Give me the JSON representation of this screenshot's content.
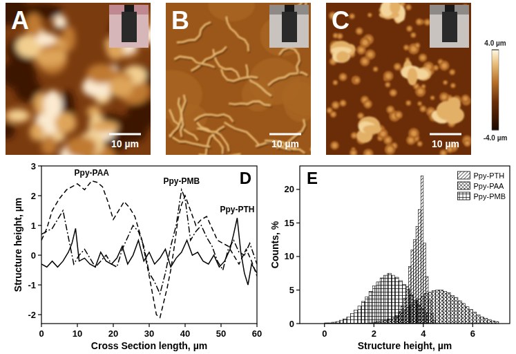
{
  "chart_data": [
    {
      "type": "image",
      "label": "A",
      "scale_bar": "10 µm"
    },
    {
      "type": "image",
      "label": "B",
      "scale_bar": "10 µm"
    },
    {
      "type": "image",
      "label": "C",
      "scale_bar": "10 µm"
    },
    {
      "type": "colorbar",
      "clim": [
        -4,
        4
      ],
      "ticks": [
        {
          "value": 4,
          "label": "4.0 µm"
        },
        {
          "value": -4,
          "label": "-4.0 µm"
        }
      ]
    },
    {
      "type": "line",
      "label": "D",
      "x_label": "Cross Section length, µm",
      "y_label": "Structure height, µm",
      "xlim": [
        0,
        60
      ],
      "ylim": [
        -2.3,
        3
      ],
      "xticks": [
        0,
        10,
        20,
        30,
        40,
        50,
        60
      ],
      "yticks": [
        -2,
        -1,
        0,
        1,
        2,
        3
      ],
      "grid": false,
      "series": [
        {
          "name": "Ppy-PAA",
          "color": "#000000",
          "line_style": "dashed",
          "x": [
            0,
            1.5,
            3,
            5,
            7,
            8.5,
            10,
            12,
            14,
            15.5,
            17,
            18.5,
            20,
            21.5,
            23,
            24.5,
            26,
            28,
            30,
            32,
            33,
            34,
            35,
            36,
            37,
            38,
            39,
            40,
            41.5,
            43,
            44.5,
            46,
            47.5,
            49,
            50.5,
            52,
            53.5,
            55,
            57,
            58.5,
            60
          ],
          "values": [
            0.5,
            0.9,
            1.5,
            1.9,
            2.2,
            2.3,
            2.4,
            2.2,
            2.5,
            2.45,
            2.3,
            1.8,
            1.2,
            1.5,
            1.8,
            1.6,
            1.3,
            0.5,
            -0.7,
            -2.0,
            -2.1,
            -1.6,
            -1.1,
            -0.5,
            0.3,
            1.2,
            1.7,
            2.0,
            1.5,
            1.0,
            1.2,
            1.3,
            0.9,
            0.5,
            0.4,
            0.3,
            0.0,
            -0.3,
            0.2,
            -0.2,
            -0.7
          ]
        },
        {
          "name": "Ppy-PMB",
          "color": "#000000",
          "line_style": "dashdot",
          "x": [
            0,
            1.5,
            3,
            4.5,
            6,
            7.5,
            9,
            10.5,
            12,
            13.5,
            15,
            16.5,
            18,
            19.5,
            21,
            22.5,
            24,
            25.5,
            27,
            28.5,
            30,
            31.5,
            33,
            34.5,
            36,
            37.5,
            39,
            40,
            41.5,
            43,
            44.5,
            46,
            47.5,
            49,
            50.5,
            52,
            53.5,
            55,
            56.5,
            58,
            60
          ],
          "values": [
            0.7,
            0.8,
            0.9,
            1.2,
            1.5,
            0.6,
            -0.3,
            0.0,
            0.2,
            -0.1,
            -0.4,
            -0.2,
            0.0,
            -0.3,
            -0.4,
            0.2,
            0.6,
            1.0,
            0.8,
            0.3,
            -0.6,
            -0.9,
            -1.3,
            -0.6,
            0.3,
            1.0,
            2.2,
            1.9,
            0.5,
            0.8,
            1.0,
            0.6,
            0.3,
            -0.2,
            -0.5,
            0.2,
            0.5,
            0.1,
            0.0,
            0.4,
            -0.3
          ]
        },
        {
          "name": "Ppy-PTH",
          "color": "#000000",
          "line_style": "solid",
          "x": [
            0,
            1.5,
            3,
            4.5,
            6,
            7.5,
            8.5,
            9.5,
            10.5,
            12,
            13.5,
            15,
            16.5,
            18,
            19.5,
            21,
            22.5,
            24,
            25.5,
            27,
            28.5,
            30,
            31.5,
            33,
            34.5,
            36,
            37.5,
            39,
            40.5,
            42,
            43.5,
            45,
            46.5,
            48,
            49.5,
            51,
            52.5,
            53.5,
            54.5,
            55.5,
            56.5,
            57.5,
            58.5,
            60
          ],
          "values": [
            -0.3,
            -0.4,
            -0.2,
            -0.4,
            -0.2,
            0.1,
            0.4,
            0.9,
            -0.2,
            -0.1,
            -0.3,
            -0.4,
            0.1,
            -0.2,
            -0.3,
            -0.1,
            0.3,
            -0.3,
            0.0,
            0.5,
            -0.2,
            0.1,
            -0.3,
            -0.1,
            0.2,
            -0.4,
            -0.1,
            0.1,
            0.5,
            0.0,
            0.1,
            -0.2,
            -0.3,
            0.0,
            -0.4,
            -0.2,
            0.2,
            0.7,
            1.25,
            0.1,
            -0.6,
            -1.0,
            -0.3,
            -0.6
          ]
        }
      ]
    },
    {
      "type": "histogram",
      "label": "E",
      "x_label": "Structure height, µm",
      "y_label": "Counts, %",
      "xlim": [
        -1,
        7.5
      ],
      "ylim": [
        0,
        23.5
      ],
      "xticks": [
        0,
        2,
        4,
        6
      ],
      "yticks": [
        0,
        5,
        10,
        15,
        20
      ],
      "grid": false,
      "legend": "upper right",
      "series": [
        {
          "name": "Ppy-PTH",
          "color": "#000000",
          "bins": [
            2.9,
            3.0,
            3.1,
            3.2,
            3.3,
            3.4,
            3.5,
            3.6,
            3.7,
            3.8,
            3.9,
            4.0,
            4.1,
            4.2,
            4.3,
            4.4,
            4.5
          ],
          "values": [
            1.0,
            1.8,
            2.6,
            3.8,
            5.5,
            8.5,
            11.0,
            12.5,
            14.5,
            17.0,
            22.0,
            12.0,
            7.0,
            3.5,
            1.5,
            0.5
          ]
        },
        {
          "name": "Ppy-PAA",
          "color": "#000000",
          "bins": [
            1.8,
            1.95,
            2.1,
            2.25,
            2.4,
            2.55,
            2.7,
            2.85,
            3.0,
            3.15,
            3.3,
            3.45,
            3.6,
            3.75,
            3.9,
            4.05,
            4.2,
            4.35,
            4.5,
            4.65,
            4.8,
            4.95,
            5.1,
            5.25,
            5.4,
            5.55,
            5.7,
            5.85,
            6.0,
            6.15,
            6.3,
            6.45,
            6.6,
            6.75,
            6.9,
            7.05
          ],
          "values": [
            0.1,
            0.2,
            0.3,
            0.4,
            0.5,
            0.7,
            0.9,
            1.2,
            1.6,
            1.9,
            2.4,
            2.8,
            3.3,
            3.7,
            4.1,
            4.5,
            4.7,
            4.9,
            5.0,
            5.0,
            4.8,
            4.6,
            4.2,
            3.9,
            3.4,
            3.0,
            2.5,
            2.1,
            1.7,
            1.3,
            1.0,
            0.8,
            0.6,
            0.4,
            0.3
          ]
        },
        {
          "name": "Ppy-PMB",
          "color": "#000000",
          "bins": [
            0,
            0.15,
            0.3,
            0.45,
            0.6,
            0.75,
            0.9,
            1.05,
            1.2,
            1.35,
            1.5,
            1.65,
            1.8,
            1.95,
            2.1,
            2.25,
            2.4,
            2.55,
            2.7,
            2.85,
            3.0,
            3.15,
            3.3,
            3.45,
            3.6,
            3.75,
            3.9,
            4.05,
            4.2
          ],
          "values": [
            0.1,
            0.1,
            0.2,
            0.3,
            0.5,
            0.7,
            1.0,
            1.5,
            2.0,
            2.6,
            3.3,
            4.0,
            4.8,
            5.6,
            6.2,
            6.8,
            7.2,
            7.5,
            7.2,
            6.9,
            6.4,
            5.8,
            5.1,
            4.3,
            3.5,
            2.8,
            2.2,
            1.6
          ]
        }
      ]
    }
  ]
}
